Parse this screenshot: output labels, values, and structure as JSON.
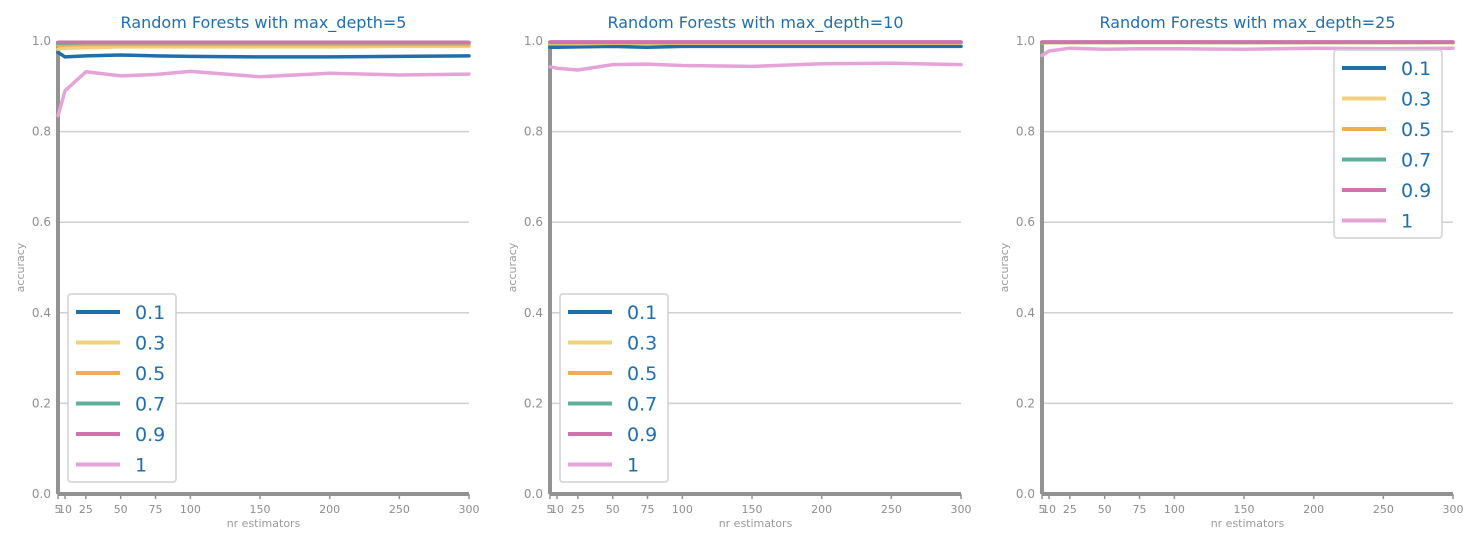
{
  "chart_data": [
    {
      "type": "line",
      "title": "Random Forests with max_depth=5",
      "xlabel": "nr estimators",
      "ylabel": "accuracy",
      "x": [
        5,
        10,
        25,
        50,
        75,
        100,
        150,
        200,
        250,
        300
      ],
      "xticks": [
        "5",
        "10",
        "25",
        "50",
        "75",
        "100",
        "150",
        "200",
        "250",
        "300"
      ],
      "yticks": [
        "0.0",
        "0.2",
        "0.4",
        "0.6",
        "0.8",
        "1.0"
      ],
      "xlim": [
        5,
        300
      ],
      "ylim": [
        0,
        1.0
      ],
      "grid": "horizontal",
      "legend_position": "lower-left",
      "series": [
        {
          "name": "0.1",
          "color": "#1f6faa",
          "values": [
            0.975,
            0.965,
            0.967,
            0.969,
            0.967,
            0.966,
            0.965,
            0.965,
            0.966,
            0.967
          ]
        },
        {
          "name": "0.3",
          "color": "#f0d27c",
          "values": [
            0.982,
            0.984,
            0.985,
            0.987,
            0.987,
            0.987,
            0.987,
            0.987,
            0.988,
            0.988
          ]
        },
        {
          "name": "0.5",
          "color": "#efae52",
          "values": [
            0.99,
            0.991,
            0.992,
            0.992,
            0.992,
            0.992,
            0.992,
            0.992,
            0.992,
            0.992
          ]
        },
        {
          "name": "0.7",
          "color": "#5fb09a",
          "values": [
            0.995,
            0.995,
            0.996,
            0.996,
            0.996,
            0.996,
            0.996,
            0.996,
            0.996,
            0.996
          ]
        },
        {
          "name": "0.9",
          "color": "#cf72ae",
          "values": [
            0.997,
            0.997,
            0.997,
            0.997,
            0.997,
            0.997,
            0.997,
            0.997,
            0.997,
            0.997
          ]
        },
        {
          "name": "1",
          "color": "#e6a3d8",
          "values": [
            0.835,
            0.89,
            0.932,
            0.923,
            0.926,
            0.933,
            0.921,
            0.929,
            0.925,
            0.927
          ]
        }
      ]
    },
    {
      "type": "line",
      "title": "Random Forests with max_depth=10",
      "xlabel": "nr estimators",
      "ylabel": "accuracy",
      "x": [
        5,
        10,
        25,
        50,
        75,
        100,
        150,
        200,
        250,
        300
      ],
      "xticks": [
        "5",
        "10",
        "25",
        "50",
        "75",
        "100",
        "150",
        "200",
        "250",
        "300"
      ],
      "yticks": [
        "0.0",
        "0.2",
        "0.4",
        "0.6",
        "0.8",
        "1.0"
      ],
      "xlim": [
        5,
        300
      ],
      "ylim": [
        0,
        1.0
      ],
      "grid": "horizontal",
      "legend_position": "lower-left",
      "series": [
        {
          "name": "0.1",
          "color": "#1f6faa",
          "values": [
            0.986,
            0.986,
            0.987,
            0.988,
            0.986,
            0.988,
            0.988,
            0.988,
            0.988,
            0.988
          ]
        },
        {
          "name": "0.3",
          "color": "#f0d27c",
          "values": [
            0.994,
            0.994,
            0.994,
            0.995,
            0.995,
            0.995,
            0.995,
            0.995,
            0.995,
            0.995
          ]
        },
        {
          "name": "0.5",
          "color": "#efae52",
          "values": [
            0.996,
            0.996,
            0.996,
            0.996,
            0.996,
            0.996,
            0.996,
            0.996,
            0.996,
            0.996
          ]
        },
        {
          "name": "0.7",
          "color": "#5fb09a",
          "values": [
            0.997,
            0.997,
            0.997,
            0.997,
            0.997,
            0.997,
            0.997,
            0.997,
            0.997,
            0.997
          ]
        },
        {
          "name": "0.9",
          "color": "#cf72ae",
          "values": [
            0.998,
            0.998,
            0.998,
            0.998,
            0.998,
            0.998,
            0.998,
            0.998,
            0.998,
            0.998
          ]
        },
        {
          "name": "1",
          "color": "#e6a3d8",
          "values": [
            0.943,
            0.94,
            0.936,
            0.948,
            0.949,
            0.946,
            0.944,
            0.95,
            0.951,
            0.948
          ]
        }
      ]
    },
    {
      "type": "line",
      "title": "Random Forests with max_depth=25",
      "xlabel": "nr estimators",
      "ylabel": "accuracy",
      "x": [
        5,
        10,
        25,
        50,
        75,
        100,
        150,
        200,
        250,
        300
      ],
      "xticks": [
        "5",
        "10",
        "25",
        "50",
        "75",
        "100",
        "150",
        "200",
        "250",
        "300"
      ],
      "yticks": [
        "0.0",
        "0.2",
        "0.4",
        "0.6",
        "0.8",
        "1.0"
      ],
      "xlim": [
        5,
        300
      ],
      "ylim": [
        0,
        1.0
      ],
      "grid": "horizontal",
      "legend_position": "upper-right",
      "series": [
        {
          "name": "0.1",
          "color": "#1f6faa",
          "values": [
            0.996,
            0.996,
            0.996,
            0.996,
            0.996,
            0.996,
            0.996,
            0.996,
            0.996,
            0.996
          ]
        },
        {
          "name": "0.3",
          "color": "#f0d27c",
          "values": [
            0.996,
            0.996,
            0.996,
            0.996,
            0.996,
            0.996,
            0.996,
            0.996,
            0.996,
            0.996
          ]
        },
        {
          "name": "0.5",
          "color": "#efae52",
          "values": [
            0.997,
            0.997,
            0.997,
            0.997,
            0.997,
            0.997,
            0.997,
            0.997,
            0.997,
            0.997
          ]
        },
        {
          "name": "0.7",
          "color": "#5fb09a",
          "values": [
            0.997,
            0.997,
            0.997,
            0.997,
            0.997,
            0.997,
            0.997,
            0.997,
            0.997,
            0.997
          ]
        },
        {
          "name": "0.9",
          "color": "#cf72ae",
          "values": [
            0.998,
            0.998,
            0.998,
            0.998,
            0.998,
            0.998,
            0.998,
            0.998,
            0.998,
            0.998
          ]
        },
        {
          "name": "1",
          "color": "#e6a3d8",
          "values": [
            0.968,
            0.978,
            0.984,
            0.982,
            0.983,
            0.983,
            0.982,
            0.984,
            0.983,
            0.984
          ]
        }
      ]
    }
  ]
}
